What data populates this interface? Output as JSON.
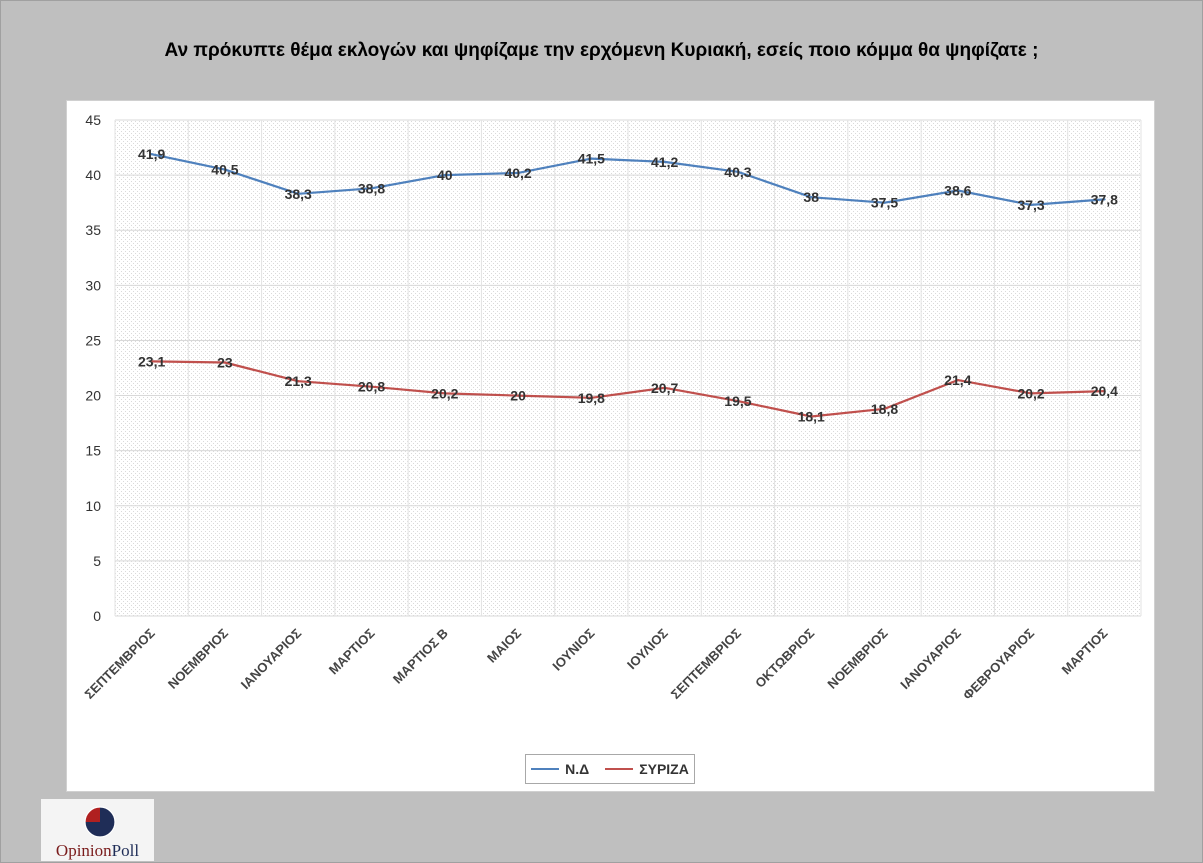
{
  "chart_data": {
    "type": "line",
    "title": "Αν πρόκυπτε θέμα εκλογών και ψηφίζαμε την ερχόμενη Κυριακή, εσείς ποιο κόμμα θα ψηφίζατε ;",
    "categories": [
      "ΣΕΠΤΕΜΒΡΙΟΣ",
      "ΝΟΕΜΒΡΙΟΣ",
      "ΙΑΝΟΥΑΡΙΟΣ",
      "ΜΑΡΤΙΟΣ",
      "ΜΑΡΤΙΟΣ Β",
      "ΜΑΙΟΣ",
      "ΙΟΥΝΙΟΣ",
      "ΙΟΥΛΙΟΣ",
      "ΣΕΠΤΕΜΒΡΙΟΣ",
      "ΟΚΤΩΒΡΙΟΣ",
      "ΝΟΕΜΒΡΙΟΣ",
      "ΙΑΝΟΥΑΡΙΟΣ",
      "ΦΕΒΡΟΥΑΡΙΟΣ",
      "ΜΑΡΤΙΟΣ"
    ],
    "series": [
      {
        "name": "Ν.Δ",
        "color": "#4f81bd",
        "values": [
          41.9,
          40.5,
          38.3,
          38.8,
          40,
          40.2,
          41.5,
          41.2,
          40.3,
          38,
          37.5,
          38.6,
          37.3,
          37.8
        ],
        "labels": [
          "41,9",
          "40,5",
          "38,3",
          "38,8",
          "40",
          "40,2",
          "41,5",
          "41,2",
          "40,3",
          "38",
          "37,5",
          "38,6",
          "37,3",
          "37,8"
        ]
      },
      {
        "name": "ΣΥΡΙΖΑ",
        "color": "#c0504d",
        "values": [
          23.1,
          23,
          21.3,
          20.8,
          20.2,
          20,
          19.8,
          20.7,
          19.5,
          18.1,
          18.8,
          21.4,
          20.2,
          20.4
        ],
        "labels": [
          "23,1",
          "23",
          "21,3",
          "20,8",
          "20,2",
          "20",
          "19,8",
          "20,7",
          "19,5",
          "18,1",
          "18,8",
          "21,4",
          "20,2",
          "20,4"
        ]
      }
    ],
    "ylim": [
      0,
      45
    ],
    "yticks": [
      0,
      5,
      10,
      15,
      20,
      25,
      30,
      35,
      40,
      45
    ],
    "grid": true,
    "legend_position": "bottom"
  },
  "logo": {
    "part1": "Opinion",
    "part2": "Poll"
  }
}
